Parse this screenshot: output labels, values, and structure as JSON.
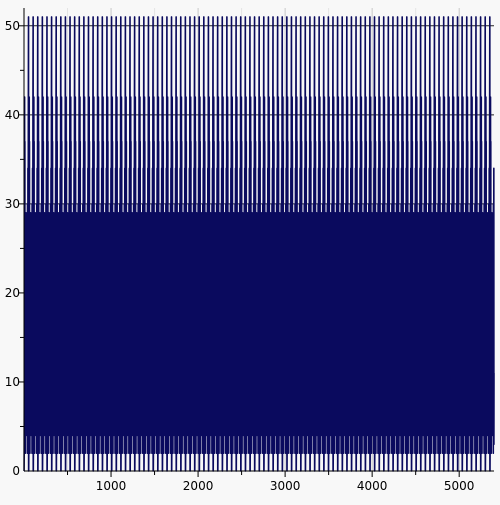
{
  "chart_data": {
    "type": "line",
    "title": "",
    "xlabel": "",
    "ylabel": "",
    "xlim": [
      0,
      5400
    ],
    "ylim": [
      0,
      52
    ],
    "x_ticks": [
      1000,
      2000,
      3000,
      4000,
      5000
    ],
    "y_ticks": [
      0,
      10,
      20,
      30,
      40,
      50
    ],
    "grid": true,
    "legend": "none",
    "series": [
      {
        "color": "#0a0a5e",
        "function": "y = |n mod 53 - n^2 mod 53| for integer n from 0 to 5400, shown as a connected line",
        "x_range": [
          0,
          5400
        ],
        "step": 1
      }
    ]
  }
}
